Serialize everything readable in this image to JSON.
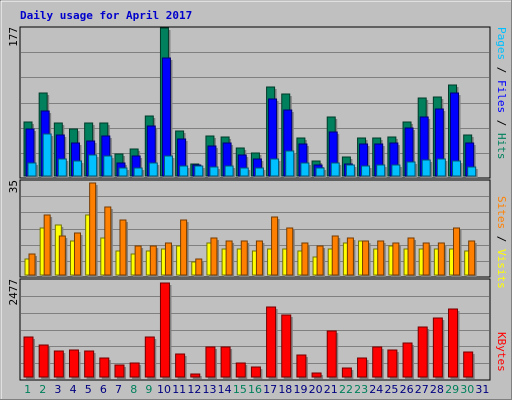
{
  "title": "Daily usage for April 2017",
  "colors": {
    "background": "#c0c0c0",
    "grid": "#808080",
    "hits": "#00805c",
    "files": "#0000ff",
    "pages": "#00c0ff",
    "visits": "#ffff00",
    "sites": "#ff8000",
    "kbytes": "#ff0000",
    "title": "#0000cc",
    "weekend": "#00805c",
    "weekday": "#000080"
  },
  "legend": {
    "pages": "Pages",
    "files": "Files",
    "hits": "Hits",
    "visits": "Visits",
    "sites": "Sites",
    "kbytes": "KBytes",
    "sep1": " / ",
    "sep2": " / "
  },
  "chart_data": [
    {
      "type": "bar",
      "panel": "hits-files-pages",
      "ymax_label": "177",
      "ylim": [
        0,
        177
      ],
      "grid": true,
      "categories": [
        "1",
        "2",
        "3",
        "4",
        "5",
        "6",
        "7",
        "8",
        "9",
        "10",
        "11",
        "12",
        "13",
        "14",
        "15",
        "16",
        "17",
        "18",
        "19",
        "20",
        "21",
        "22",
        "23",
        "24",
        "25",
        "26",
        "27",
        "28",
        "29",
        "30",
        "31"
      ],
      "weekend_days": [
        "1",
        "2",
        "8",
        "9",
        "15",
        "16",
        "22",
        "23",
        "29",
        "30"
      ],
      "series": [
        {
          "name": "Hits",
          "values": [
            64,
            99,
            63,
            56,
            63,
            63,
            26,
            32,
            72,
            177,
            54,
            14,
            48,
            47,
            33,
            27,
            107,
            98,
            45,
            18,
            70,
            23,
            45,
            46,
            47,
            65,
            93,
            94,
            109,
            49,
            0
          ]
        },
        {
          "name": "Files",
          "values": [
            56,
            78,
            49,
            40,
            42,
            48,
            16,
            24,
            60,
            141,
            44,
            13,
            36,
            39,
            25,
            20,
            92,
            79,
            38,
            13,
            53,
            14,
            38,
            38,
            40,
            57,
            71,
            80,
            99,
            39,
            0
          ]
        },
        {
          "name": "Pages",
          "values": [
            16,
            50,
            20,
            18,
            25,
            24,
            10,
            10,
            15,
            24,
            12,
            12,
            11,
            12,
            10,
            10,
            20,
            30,
            15,
            10,
            15,
            13,
            12,
            13,
            13,
            17,
            19,
            20,
            18,
            11,
            0
          ]
        }
      ]
    },
    {
      "type": "bar",
      "panel": "visits-sites",
      "ymax_label": "35",
      "ylim": [
        0,
        35
      ],
      "grid": true,
      "categories": [
        "1",
        "2",
        "3",
        "4",
        "5",
        "6",
        "7",
        "8",
        "9",
        "10",
        "11",
        "12",
        "13",
        "14",
        "15",
        "16",
        "17",
        "18",
        "19",
        "20",
        "21",
        "22",
        "23",
        "24",
        "25",
        "26",
        "27",
        "28",
        "29",
        "30",
        "31"
      ],
      "series": [
        {
          "name": "Visits",
          "values": [
            6,
            18,
            19,
            13,
            23,
            14,
            9,
            8,
            9,
            10,
            11,
            5,
            12,
            10,
            10,
            9,
            10,
            10,
            9,
            7,
            10,
            12,
            13,
            10,
            11,
            10,
            10,
            10,
            10,
            9,
            0
          ]
        },
        {
          "name": "Sites",
          "values": [
            8,
            23,
            15,
            16,
            35,
            26,
            21,
            11,
            11,
            12,
            21,
            6,
            14,
            13,
            13,
            13,
            22,
            18,
            12,
            11,
            15,
            14,
            13,
            13,
            12,
            14,
            12,
            12,
            18,
            13,
            0
          ]
        }
      ]
    },
    {
      "type": "bar",
      "panel": "kbytes",
      "ymax_label": "2477",
      "ylim": [
        0,
        2477
      ],
      "grid": true,
      "categories": [
        "1",
        "2",
        "3",
        "4",
        "5",
        "6",
        "7",
        "8",
        "9",
        "10",
        "11",
        "12",
        "13",
        "14",
        "15",
        "16",
        "17",
        "18",
        "19",
        "20",
        "21",
        "22",
        "23",
        "24",
        "25",
        "26",
        "27",
        "28",
        "29",
        "30",
        "31"
      ],
      "series": [
        {
          "name": "KBytes",
          "values": [
            1050,
            852,
            687,
            724,
            678,
            509,
            313,
            359,
            1050,
            2477,
            611,
            69,
            792,
            800,
            360,
            270,
            1842,
            1634,
            570,
            109,
            1220,
            230,
            503,
            778,
            715,
            889,
            1306,
            1542,
            1803,
            667,
            0
          ]
        }
      ]
    }
  ]
}
